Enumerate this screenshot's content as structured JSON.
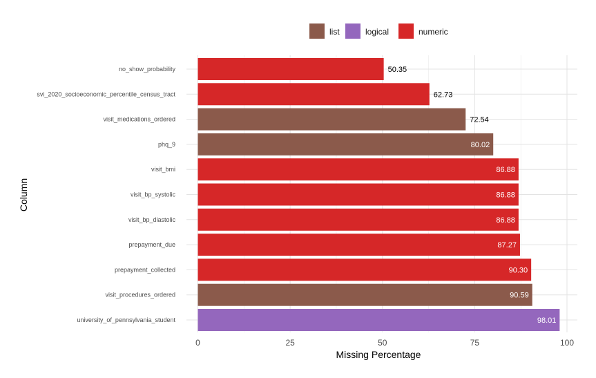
{
  "chart_data": {
    "type": "bar",
    "orientation": "horizontal",
    "title": "",
    "xlabel": "Missing Percentage",
    "ylabel": "Column",
    "xlim": [
      0,
      100
    ],
    "xticks": [
      0,
      25,
      50,
      75,
      100
    ],
    "grid": true,
    "legend_placement": "top",
    "legend": [
      {
        "name": "list",
        "color": "#8B5A4B"
      },
      {
        "name": "logical",
        "color": "#9467BD"
      },
      {
        "name": "numeric",
        "color": "#D62728"
      }
    ],
    "bars": [
      {
        "category": "no_show_probability",
        "value": 50.35,
        "label": "50.35",
        "type": "numeric"
      },
      {
        "category": "svi_2020_socioeconomic_percentile_census_tract",
        "value": 62.73,
        "label": "62.73",
        "type": "numeric"
      },
      {
        "category": "visit_medications_ordered",
        "value": 72.54,
        "label": "72.54",
        "type": "list"
      },
      {
        "category": "phq_9",
        "value": 80.02,
        "label": "80.02",
        "type": "list"
      },
      {
        "category": "visit_bmi",
        "value": 86.88,
        "label": "86.88",
        "type": "numeric"
      },
      {
        "category": "visit_bp_systolic",
        "value": 86.88,
        "label": "86.88",
        "type": "numeric"
      },
      {
        "category": "visit_bp_diastolic",
        "value": 86.88,
        "label": "86.88",
        "type": "numeric"
      },
      {
        "category": "prepayment_due",
        "value": 87.27,
        "label": "87.27",
        "type": "numeric"
      },
      {
        "category": "prepayment_collected",
        "value": 90.3,
        "label": "90.30",
        "type": "numeric"
      },
      {
        "category": "visit_procedures_ordered",
        "value": 90.59,
        "label": "90.59",
        "type": "list"
      },
      {
        "category": "university_of_pennsylvania_student",
        "value": 98.01,
        "label": "98.01",
        "type": "logical"
      }
    ]
  }
}
